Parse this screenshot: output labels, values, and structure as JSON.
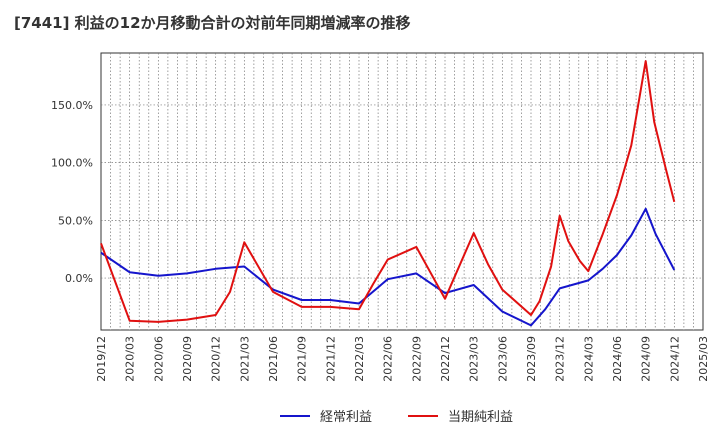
{
  "chart_data": {
    "type": "line",
    "title": "[7441]  利益の12か月移動合計の対前年同期増減率の推移",
    "xlabel": "",
    "ylabel": "",
    "ylim": [
      -45,
      195
    ],
    "yticks": [
      {
        "value": 0,
        "label": "0.0%"
      },
      {
        "value": 50,
        "label": "50.0%"
      },
      {
        "value": 100,
        "label": "100.0%"
      },
      {
        "value": 150,
        "label": "150.0%"
      }
    ],
    "x_ticks": [
      "2019/12",
      "2020/03",
      "2020/06",
      "2020/09",
      "2020/12",
      "2021/03",
      "2021/06",
      "2021/09",
      "2021/12",
      "2022/03",
      "2022/06",
      "2022/09",
      "2022/12",
      "2023/03",
      "2023/06",
      "2023/09",
      "2023/12",
      "2024/03",
      "2024/06",
      "2024/09",
      "2024/12",
      "2025/03"
    ],
    "grid": true,
    "legend_position": "bottom-center",
    "series": [
      {
        "name": "経常利益",
        "color": "#1515cc",
        "points": [
          {
            "x": 0,
            "y": 22
          },
          {
            "x": 1,
            "y": 5
          },
          {
            "x": 2,
            "y": 2
          },
          {
            "x": 3,
            "y": 4
          },
          {
            "x": 4,
            "y": 8
          },
          {
            "x": 5,
            "y": 10
          },
          {
            "x": 6,
            "y": -10
          },
          {
            "x": 7,
            "y": -19
          },
          {
            "x": 8,
            "y": -19
          },
          {
            "x": 9,
            "y": -22
          },
          {
            "x": 10,
            "y": -1
          },
          {
            "x": 11,
            "y": 4
          },
          {
            "x": 12,
            "y": -13
          },
          {
            "x": 13,
            "y": -6
          },
          {
            "x": 14,
            "y": -29
          },
          {
            "x": 15,
            "y": -41
          },
          {
            "x": 15.5,
            "y": -27
          },
          {
            "x": 16,
            "y": -9
          },
          {
            "x": 17,
            "y": -2
          },
          {
            "x": 17.5,
            "y": 8
          },
          {
            "x": 18,
            "y": 20
          },
          {
            "x": 18.5,
            "y": 37
          },
          {
            "x": 19,
            "y": 60
          },
          {
            "x": 19.35,
            "y": 38
          },
          {
            "x": 20,
            "y": 7
          }
        ]
      },
      {
        "name": "当期純利益",
        "color": "#e01010",
        "points": [
          {
            "x": 0,
            "y": 30
          },
          {
            "x": 1,
            "y": -37
          },
          {
            "x": 2,
            "y": -38
          },
          {
            "x": 3,
            "y": -36
          },
          {
            "x": 4,
            "y": -32
          },
          {
            "x": 4.5,
            "y": -12
          },
          {
            "x": 5,
            "y": 31
          },
          {
            "x": 6,
            "y": -12
          },
          {
            "x": 7,
            "y": -25
          },
          {
            "x": 8,
            "y": -25
          },
          {
            "x": 9,
            "y": -27
          },
          {
            "x": 9.5,
            "y": -5
          },
          {
            "x": 10,
            "y": 16
          },
          {
            "x": 11,
            "y": 27
          },
          {
            "x": 12,
            "y": -18
          },
          {
            "x": 13,
            "y": 39
          },
          {
            "x": 13.5,
            "y": 12
          },
          {
            "x": 14,
            "y": -10
          },
          {
            "x": 15,
            "y": -32
          },
          {
            "x": 15.3,
            "y": -20
          },
          {
            "x": 15.7,
            "y": 10
          },
          {
            "x": 16,
            "y": 54
          },
          {
            "x": 16.3,
            "y": 32
          },
          {
            "x": 16.7,
            "y": 15
          },
          {
            "x": 17,
            "y": 6
          },
          {
            "x": 17.5,
            "y": 38
          },
          {
            "x": 18,
            "y": 72
          },
          {
            "x": 18.5,
            "y": 115
          },
          {
            "x": 19,
            "y": 188
          },
          {
            "x": 19.3,
            "y": 135
          },
          {
            "x": 19.7,
            "y": 95
          },
          {
            "x": 20,
            "y": 66
          }
        ]
      }
    ]
  }
}
